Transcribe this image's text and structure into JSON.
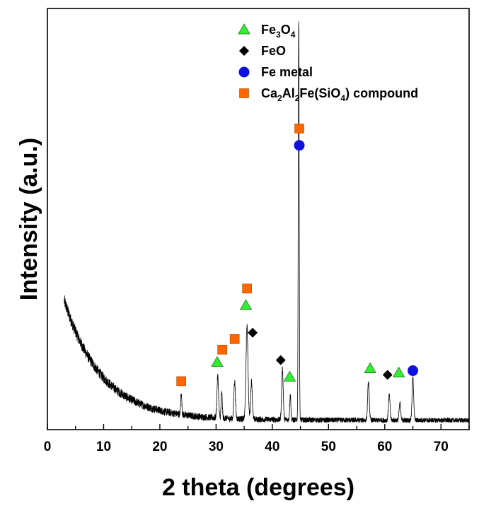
{
  "chart_data": {
    "type": "line",
    "title": "",
    "xlabel": "2 theta (degrees)",
    "ylabel": "Intensity (a.u.)",
    "xlim": [
      0,
      75
    ],
    "ylim": [
      0,
      100
    ],
    "x_ticks": [
      0,
      10,
      20,
      30,
      40,
      50,
      60,
      70
    ],
    "y_ticks": [],
    "grid": false,
    "legend_position": "top-center",
    "colors": {
      "line": "#000000",
      "fe3o4": "#33ee33",
      "feo": "#000000",
      "fe_metal": "#1111dd",
      "ca_compound": "#ff6600"
    },
    "legend": [
      {
        "key": "fe3o4",
        "marker": "triangle",
        "label_parts": [
          [
            "Fe",
            ""
          ],
          [
            "3",
            "sub"
          ],
          [
            "O",
            ""
          ],
          [
            "4",
            "sub"
          ]
        ]
      },
      {
        "key": "feo",
        "marker": "diamond",
        "label_parts": [
          [
            "FeO",
            ""
          ]
        ]
      },
      {
        "key": "fe_metal",
        "marker": "circle",
        "label_parts": [
          [
            "Fe metal",
            ""
          ]
        ]
      },
      {
        "key": "ca_compound",
        "marker": "square",
        "label_parts": [
          [
            "Ca",
            ""
          ],
          [
            "2",
            "sub"
          ],
          [
            "Al",
            ""
          ],
          [
            "2",
            "sub"
          ],
          [
            "Fe(SiO",
            ""
          ],
          [
            "4",
            "sub"
          ],
          [
            ") compound",
            ""
          ]
        ]
      }
    ],
    "baseline": {
      "start_x": 3,
      "start_y": 30,
      "end_y": 2,
      "decay": 0.15,
      "noise": 3
    },
    "peaks": [
      {
        "x": 23.8,
        "height": 5,
        "width": 0.15
      },
      {
        "x": 30.3,
        "height": 10,
        "width": 0.2
      },
      {
        "x": 31.0,
        "height": 6,
        "width": 0.15
      },
      {
        "x": 33.3,
        "height": 9,
        "width": 0.2
      },
      {
        "x": 35.5,
        "height": 22,
        "width": 0.25
      },
      {
        "x": 36.3,
        "height": 9,
        "width": 0.2
      },
      {
        "x": 41.8,
        "height": 12,
        "width": 0.2
      },
      {
        "x": 43.2,
        "height": 6,
        "width": 0.15
      },
      {
        "x": 44.7,
        "height": 95,
        "width": 0.12
      },
      {
        "x": 57.1,
        "height": 9,
        "width": 0.2
      },
      {
        "x": 60.8,
        "height": 6,
        "width": 0.2
      },
      {
        "x": 62.7,
        "height": 4,
        "width": 0.2
      },
      {
        "x": 65.0,
        "height": 10,
        "width": 0.2
      }
    ],
    "markers": [
      {
        "key": "ca_compound",
        "x": 23.8,
        "y": 11.5
      },
      {
        "key": "fe3o4",
        "x": 30.2,
        "y": 16.0
      },
      {
        "key": "ca_compound",
        "x": 31.1,
        "y": 19.0
      },
      {
        "key": "ca_compound",
        "x": 33.3,
        "y": 21.5
      },
      {
        "key": "fe3o4",
        "x": 35.3,
        "y": 29.5
      },
      {
        "key": "ca_compound",
        "x": 35.5,
        "y": 33.5
      },
      {
        "key": "feo",
        "x": 36.5,
        "y": 23.0
      },
      {
        "key": "feo",
        "x": 41.5,
        "y": 16.5
      },
      {
        "key": "fe3o4",
        "x": 43.1,
        "y": 12.5
      },
      {
        "key": "fe_metal",
        "x": 44.8,
        "y": 67.5
      },
      {
        "key": "ca_compound",
        "x": 44.8,
        "y": 71.5
      },
      {
        "key": "fe3o4",
        "x": 57.4,
        "y": 14.5
      },
      {
        "key": "feo",
        "x": 60.5,
        "y": 13.0
      },
      {
        "key": "fe3o4",
        "x": 62.5,
        "y": 13.5
      },
      {
        "key": "fe_metal",
        "x": 65.0,
        "y": 14.0
      }
    ]
  }
}
